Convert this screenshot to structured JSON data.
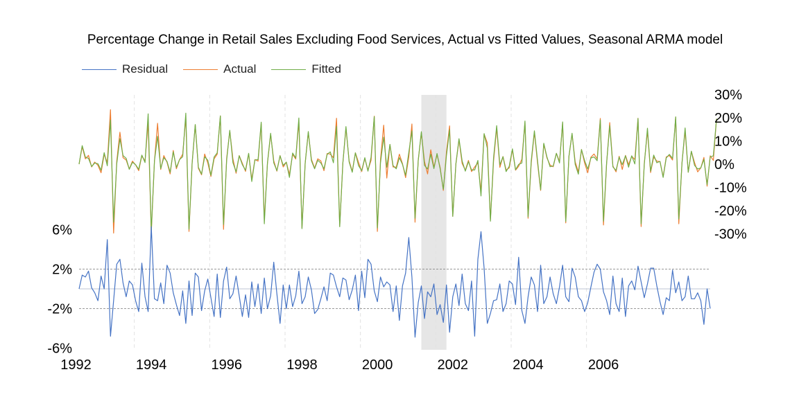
{
  "chart_data": {
    "type": "line",
    "title": "Percentage Change in Retail Sales Excluding Food Services, Actual vs Fitted Values, Seasonal ARMA model",
    "legend_position": "top-left",
    "grid": false,
    "x_ticks": [
      "1992",
      "1994",
      "1996",
      "1998",
      "2000",
      "2002",
      "2004",
      "2006"
    ],
    "upper_y_ticks": [
      "30%",
      "20%",
      "10%",
      "0%",
      "-10%",
      "-20%",
      "-30%"
    ],
    "lower_y_ticks": [
      "6%",
      "2%",
      "-2%",
      "-6%"
    ],
    "upper_ylim": [
      -30,
      30
    ],
    "lower_ylim": [
      -6,
      6
    ],
    "residual_bands": [
      2,
      -2
    ],
    "shaded_region": {
      "start": "2001-03",
      "end": "2001-11"
    },
    "x_start": "1992-02",
    "series": [
      {
        "name": "Residual",
        "color": "#4472C4",
        "axis": "lower",
        "values": [
          0,
          1.4,
          1.2,
          1.8,
          0.1,
          -0.4,
          -1.2,
          1.3,
          0,
          5,
          -4.8,
          -1.2,
          2.5,
          3,
          0.6,
          -0.8,
          0.8,
          0.4,
          -1.2,
          -2.3,
          2.6,
          -0.8,
          -2.3,
          6.3,
          -1,
          -1.2,
          0.6,
          -1.5,
          2.4,
          1.6,
          -0.4,
          -1.6,
          -2.7,
          -0.2,
          -3.5,
          0.8,
          -2.7,
          1.6,
          1.2,
          -2.2,
          -0.2,
          1,
          -0.9,
          -2.8,
          1.5,
          -2.9,
          0.8,
          2.2,
          -1,
          -0.5,
          1.3,
          -0.7,
          -2.8,
          -0.6,
          -2.9,
          0.7,
          -1.8,
          0.5,
          -2.5,
          1.1,
          -2,
          -0.7,
          2.7,
          -0.5,
          -3.5,
          0.4,
          -2,
          0.4,
          -1.8,
          -0.7,
          1.8,
          -1.5,
          -0.8,
          1.2,
          -0.1,
          -2.5,
          -2.1,
          -1,
          0.2,
          -1.2,
          1.6,
          1.4,
          0.2,
          -0.8,
          1.1,
          0.9,
          -1.1,
          -0.1,
          1.4,
          -2.2,
          1.8,
          -0.9,
          3,
          2.5,
          -0.2,
          -1.3,
          1.2,
          0.2,
          0.7,
          0.4,
          -2.3,
          0.3,
          -3.2,
          0.3,
          1.6,
          5.2,
          1.2,
          -4.9,
          -1.4,
          0.3,
          -3,
          -0.3,
          -0.8,
          0.5,
          -2.6,
          -1.6,
          -3.4,
          0.4,
          -4.4,
          -0.8,
          0.5,
          -1.7,
          1.5,
          -1.5,
          -2.2,
          0.8,
          -4.8,
          3,
          5.8,
          2.1,
          -3.5,
          -2.5,
          -1.2,
          -1.1,
          0.5,
          -2.3,
          -1.5,
          0.8,
          0.5,
          -1.6,
          3.2,
          -2.2,
          -3.5,
          -0.8,
          1.2,
          0.4,
          -2.3,
          2.4,
          -1.5,
          -0.8,
          1.2,
          -0.5,
          -1.5,
          0.2,
          2.4,
          -0.8,
          -1.3,
          2.1,
          1.2,
          -0.8,
          -1.2,
          -2.3,
          -1.4,
          0.2,
          1.7,
          2.5,
          2,
          -0.3,
          -1.2,
          -2.6,
          1.3,
          -1.5,
          -2.3,
          1.1,
          -2.8,
          0.3,
          0.8,
          -0.1,
          2.3,
          0.7,
          -0.9,
          0.5,
          2.1,
          2.1,
          0.3,
          -1.3,
          -2.6,
          -0.9,
          -1.2,
          1.9,
          -0.4,
          0.7,
          -1.2,
          -0.8,
          1.3,
          -1,
          -1,
          -0.4,
          -1.2,
          -3.6,
          0,
          -2
        ]
      },
      {
        "name": "Actual",
        "color": "#ED7D31",
        "axis": "upper",
        "values": [
          0,
          7.5,
          2.3,
          3.8,
          -1.2,
          0.9,
          -0.5,
          -3.7,
          4.2,
          0.7,
          23.5,
          -29.7,
          1.2,
          13.8,
          2.8,
          1.8,
          -2.1,
          1.3,
          -0.3,
          -2.8,
          3.6,
          1.3,
          18,
          -29.7,
          1.4,
          17.6,
          -2.3,
          3.7,
          0.8,
          -4.2,
          5.9,
          -2,
          2,
          4.3,
          20.2,
          -29,
          0.3,
          16.9,
          -1.8,
          -4.6,
          4.4,
          0.5,
          -5.3,
          2.3,
          4.3,
          20.8,
          -28.1,
          2.5,
          14.3,
          2.3,
          -3.9,
          3.7,
          0.4,
          -3.1,
          4.5,
          -6.6,
          2,
          1.3,
          17.4,
          -24,
          0.3,
          12.9,
          1.5,
          -3,
          3.7,
          -1.2,
          0.9,
          -4.5,
          4.2,
          2.2,
          18.5,
          -27.5,
          0.4,
          13.6,
          2.1,
          -1.7,
          2.3,
          1.4,
          -2.8,
          4.6,
          4.3,
          2.8,
          19.8,
          -26.7,
          0.4,
          15.5,
          1.4,
          -3.1,
          4.9,
          0.8,
          -3.2,
          2.5,
          -2.6,
          1.6,
          20.7,
          -29,
          1.9,
          16.8,
          -6,
          8.5,
          -1.2,
          -1.3,
          4.3,
          0.2,
          -5.8,
          3.1,
          17.3,
          -25,
          1.6,
          13.4,
          1.2,
          -4.2,
          6.2,
          -1.3,
          4.1,
          -1.4,
          -11.3,
          5.2,
          16.5,
          -22.5,
          0,
          10.5,
          0.3,
          -2.6,
          1.6,
          -3.2,
          -1.2,
          0.6,
          -11.7,
          13,
          9.1,
          -23.9,
          1.2,
          15.6,
          -1.4,
          3.3,
          -2.5,
          -1.6,
          6.2,
          -2.6,
          -0.9,
          2.1,
          18,
          -23.3,
          0.3,
          13.8,
          0.6,
          -11.3,
          8.7,
          2.7,
          -0.4,
          -1.1,
          4.7,
          1.1,
          17.7,
          -25.3,
          3.3,
          13,
          1,
          -3.3,
          6.3,
          0.5,
          -3.7,
          3,
          4.4,
          2.2,
          19.7,
          -26.2,
          0.1,
          17.9,
          -0.8,
          -3.3,
          3.4,
          -2.3,
          3.8,
          -0.2,
          3.4,
          2,
          19.8,
          -26.9,
          0.3,
          14.3,
          -3.6,
          3.1,
          1.3,
          1.1,
          -5.4,
          3.1,
          3.7,
          1.8,
          20.3,
          -25.7,
          0.7,
          14.4,
          -3.5,
          5.5,
          0.7,
          -3.3,
          -1.6,
          2.9,
          -9.5,
          3.6,
          1.6,
          19.6
        ]
      },
      {
        "name": "Fitted",
        "color": "#70AD47",
        "axis": "upper",
        "values": [
          0,
          8,
          3,
          2.5,
          -1,
          0.5,
          0.2,
          -2.6,
          5,
          -0.7,
          19,
          -25,
          0.1,
          11,
          3.7,
          2.5,
          -2.2,
          0.8,
          -0.2,
          -2.2,
          3.9,
          0.7,
          21.7,
          -29,
          1.4,
          12,
          -1.9,
          2.8,
          1.2,
          -3.5,
          5.3,
          -1.4,
          2,
          3.2,
          22,
          -28,
          0.4,
          17.1,
          -1.3,
          -4.3,
          3.2,
          1.7,
          -4.8,
          3.1,
          4.9,
          20.8,
          -26,
          1.7,
          14.6,
          0.7,
          -3.3,
          3.6,
          -0.2,
          -2.6,
          4.7,
          -7.5,
          1.8,
          2,
          18.1,
          -25.7,
          0.5,
          13.3,
          0.6,
          -2.8,
          3.6,
          -0.5,
          0.9,
          -5.7,
          4.8,
          2.7,
          19.9,
          -27.8,
          0.4,
          14.1,
          1.5,
          -2,
          1.7,
          0.5,
          -2,
          4.2,
          5.3,
          0.6,
          16.3,
          -27,
          0.3,
          16.2,
          0.9,
          -3.5,
          4.9,
          -0.6,
          -2.8,
          2.8,
          -3,
          3,
          20.5,
          -27.5,
          0.6,
          11.6,
          -1.3,
          8.5,
          -0.6,
          -2,
          2.8,
          -0.1,
          -4.8,
          5.1,
          14.3,
          -23.3,
          1.6,
          14,
          -0.5,
          -2.1,
          4.3,
          -1.9,
          4.6,
          -2,
          -10.8,
          3.7,
          14.8,
          -22.5,
          0.2,
          11,
          1.4,
          -3,
          1.1,
          -2.5,
          -2.5,
          1.6,
          -13.7,
          13.2,
          6.9,
          -24.6,
          2.7,
          16.6,
          -0.3,
          3.2,
          -3.2,
          -0.9,
          6.6,
          -2.4,
          -0.1,
          0.5,
          18.6,
          -22.7,
          1.3,
          14.4,
          1.6,
          -11,
          9,
          3.1,
          -1.1,
          -0.8,
          4.7,
          0.5,
          18.2,
          -24.7,
          3.5,
          13.3,
          -0.1,
          -4.3,
          6.3,
          1.5,
          -2.1,
          2.7,
          3.1,
          1.5,
          19,
          -24.6,
          0.5,
          16.6,
          -1.2,
          -2.7,
          3,
          -0.2,
          3.6,
          -1.3,
          3.6,
          0.1,
          19.7,
          -25.7,
          -0.3,
          15.5,
          -3,
          3.9,
          0.6,
          1.2,
          -5.7,
          2.7,
          4.2,
          2.5,
          20.4,
          -23.6,
          0.4,
          15.6,
          -3.5,
          5.6,
          -0.5,
          -2.1,
          -1.6,
          2.1,
          -8.8,
          3.1,
          3.6,
          19.6
        ]
      }
    ]
  }
}
